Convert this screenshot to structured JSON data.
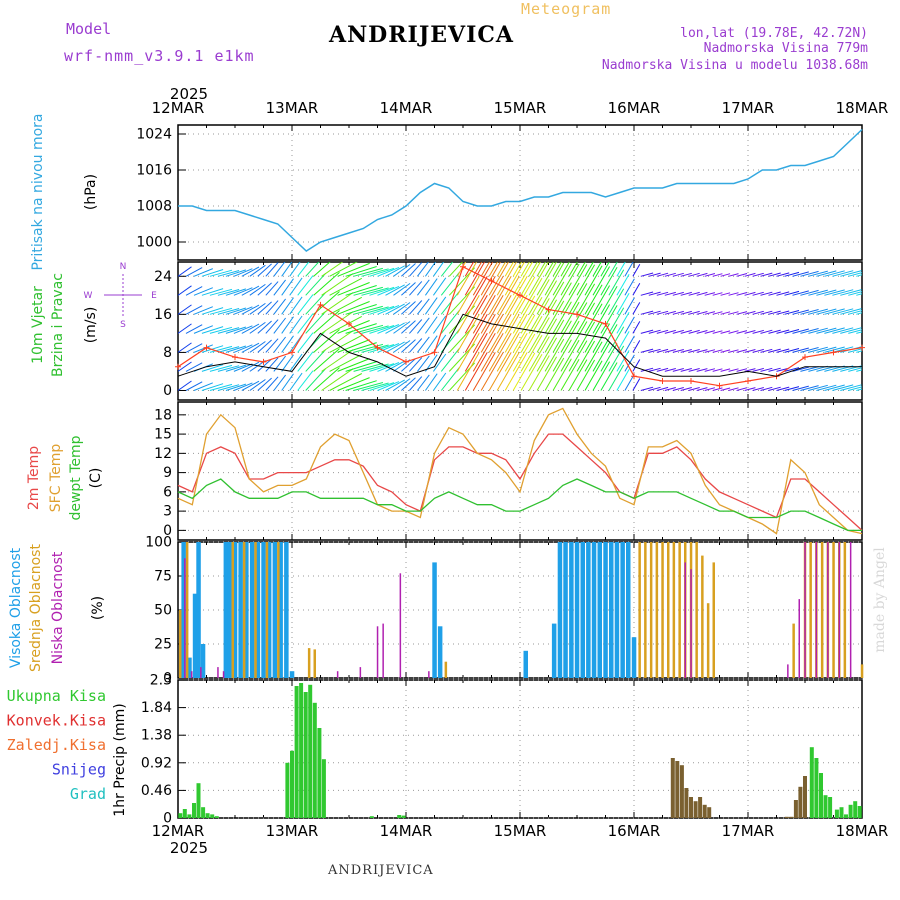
{
  "header": {
    "model_label": "Model",
    "model_name": "wrf-nmm_v3.9.1  e1km",
    "meteogram_label": "Meteogram",
    "station": "ANDRIJEVICA",
    "lonlat": "lon,lat (19.78E, 42.72N)",
    "elevation": "Nadmorska Visina 779m",
    "elevation_model": "Nadmorska Visina u modelu 1038.68m"
  },
  "footer": {
    "station": "ANDRIJEVICA",
    "watermark": "made by Angel"
  },
  "time_axis": {
    "year": "2025",
    "labels": [
      "12MAR",
      "13MAR",
      "14MAR",
      "15MAR",
      "16MAR",
      "17MAR",
      "18MAR"
    ]
  },
  "colors": {
    "pressure": "#33a8e0",
    "temp2m": "#e84848",
    "sfc_temp": "#e0a030",
    "dewpt": "#30c030",
    "high_cloud": "#1fa0e8",
    "mid_cloud": "#d8a020",
    "low_cloud": "#b020b0",
    "total_precip": "#30c830",
    "conv_precip": "#e03030",
    "frozen_precip": "#f07030",
    "snow": "#4040e0",
    "hail": "#20c0c0",
    "wind_speed": "#000000",
    "wind_gust": "#ff4020"
  },
  "chart_data": [
    {
      "type": "line",
      "title": "",
      "ylabel": [
        "Pritisak na nivou mora",
        "(hPa)"
      ],
      "ylim": [
        996,
        1026
      ],
      "yticks": [
        1000,
        1008,
        1016,
        1024
      ],
      "grid": true,
      "x": [
        0,
        0.125,
        0.25,
        0.375,
        0.5,
        0.625,
        0.75,
        0.875,
        1.0,
        1.125,
        1.25,
        1.375,
        1.5,
        1.625,
        1.75,
        1.875,
        2.0,
        2.125,
        2.25,
        2.375,
        2.5,
        2.625,
        2.75,
        2.875,
        3.0,
        3.125,
        3.25,
        3.375,
        3.5,
        3.625,
        3.75,
        3.875,
        4.0,
        4.125,
        4.25,
        4.375,
        4.5,
        4.625,
        4.75,
        4.875,
        5.0,
        5.125,
        5.25,
        5.375,
        5.5,
        5.625,
        5.75,
        5.875,
        6.0
      ],
      "series": [
        {
          "name": "Pritisak na nivou mora",
          "values": [
            1008,
            1008,
            1007,
            1007,
            1007,
            1006,
            1005,
            1004,
            1001,
            998,
            1000,
            1001,
            1002,
            1003,
            1005,
            1006,
            1008,
            1011,
            1013,
            1012,
            1009,
            1008,
            1008,
            1009,
            1009,
            1010,
            1010,
            1011,
            1011,
            1011,
            1010,
            1011,
            1012,
            1012,
            1012,
            1013,
            1013,
            1013,
            1013,
            1013,
            1014,
            1016,
            1016,
            1017,
            1017,
            1018,
            1019,
            1022,
            1025
          ]
        }
      ]
    },
    {
      "type": "line",
      "ylabel": [
        "10m Vjetar",
        "Brzina i Pravac",
        "(m/s)"
      ],
      "ylim": [
        -2,
        27
      ],
      "yticks": [
        0,
        8,
        16,
        24
      ],
      "grid": true,
      "compass": [
        "N",
        "W",
        "E",
        "S"
      ],
      "x": [
        0,
        0.25,
        0.5,
        0.75,
        1.0,
        1.25,
        1.5,
        1.75,
        2.0,
        2.25,
        2.5,
        2.75,
        3.0,
        3.25,
        3.5,
        3.75,
        4.0,
        4.25,
        4.5,
        4.75,
        5.0,
        5.25,
        5.5,
        5.75,
        6.0
      ],
      "series": [
        {
          "name": "wind speed",
          "values": [
            3,
            5,
            6,
            5,
            4,
            12,
            8,
            6,
            3,
            5,
            16,
            14,
            13,
            12,
            12,
            11,
            5,
            3,
            3,
            3,
            4,
            3,
            5,
            5,
            5
          ]
        },
        {
          "name": "wind gust",
          "values": [
            5,
            9,
            7,
            6,
            8,
            18,
            14,
            9,
            6,
            8,
            26,
            23,
            20,
            17,
            16,
            14,
            3,
            2,
            2,
            1,
            2,
            3,
            7,
            8,
            9
          ]
        }
      ]
    },
    {
      "type": "line",
      "ylabel": [
        "2m Temp",
        "SFC Temp",
        "dewpt Temp",
        "(C)"
      ],
      "ylim": [
        -1.5,
        20
      ],
      "yticks": [
        0,
        3,
        6,
        9,
        12,
        15,
        18
      ],
      "grid": true,
      "x": [
        0,
        0.125,
        0.25,
        0.375,
        0.5,
        0.625,
        0.75,
        0.875,
        1.0,
        1.125,
        1.25,
        1.375,
        1.5,
        1.625,
        1.75,
        1.875,
        2.0,
        2.125,
        2.25,
        2.375,
        2.5,
        2.625,
        2.75,
        2.875,
        3.0,
        3.125,
        3.25,
        3.375,
        3.5,
        3.625,
        3.75,
        3.875,
        4.0,
        4.125,
        4.25,
        4.375,
        4.5,
        4.625,
        4.75,
        4.875,
        5.0,
        5.125,
        5.25,
        5.375,
        5.5,
        5.625,
        5.75,
        5.875,
        6.0
      ],
      "series": [
        {
          "name": "2m Temp",
          "values": [
            7,
            6,
            12,
            13,
            12,
            8,
            8,
            9,
            9,
            9,
            10,
            11,
            11,
            10,
            7,
            6,
            4,
            3,
            11,
            13,
            13,
            12,
            12,
            11,
            8,
            12,
            15,
            15,
            13,
            11,
            9,
            6,
            5,
            12,
            12,
            13,
            11,
            8,
            6,
            5,
            4,
            3,
            2,
            8,
            8,
            6,
            4,
            2,
            0
          ]
        },
        {
          "name": "SFC Temp",
          "values": [
            5,
            4,
            15,
            18,
            16,
            8,
            6,
            7,
            7,
            8,
            13,
            15,
            14,
            9,
            4,
            3,
            3,
            2,
            12,
            16,
            15,
            12,
            11,
            9,
            6,
            14,
            18,
            19,
            15,
            12,
            10,
            5,
            4,
            13,
            13,
            14,
            12,
            7,
            4,
            3,
            2,
            1,
            -0.5,
            11,
            9,
            4,
            2,
            0,
            -0.5
          ]
        },
        {
          "name": "dewpt Temp",
          "values": [
            6,
            5,
            7,
            8,
            6,
            5,
            5,
            5,
            6,
            6,
            5,
            5,
            5,
            5,
            4,
            4,
            3,
            3,
            5,
            6,
            5,
            4,
            4,
            3,
            3,
            4,
            5,
            7,
            8,
            7,
            6,
            6,
            5,
            6,
            6,
            6,
            5,
            4,
            3,
            3,
            2,
            2,
            2,
            3,
            3,
            2,
            1,
            0,
            0
          ]
        }
      ]
    },
    {
      "type": "bar",
      "ylabel": [
        "Visoka Oblacnost",
        "Srednja Oblacnost",
        "Niska Oblacnost",
        "(%)"
      ],
      "ylim": [
        0,
        100
      ],
      "yticks": [
        0,
        25,
        50,
        75,
        100
      ],
      "grid": true,
      "series": [
        {
          "name": "Visoka Oblacnost",
          "points": [
            [
              0.05,
              100
            ],
            [
              0.1,
              15
            ],
            [
              0.15,
              62
            ],
            [
              0.18,
              100
            ],
            [
              0.22,
              25
            ],
            [
              0.42,
              100
            ],
            [
              0.45,
              100
            ],
            [
              0.5,
              100
            ],
            [
              0.55,
              100
            ],
            [
              0.6,
              100
            ],
            [
              0.65,
              100
            ],
            [
              0.7,
              100
            ],
            [
              0.75,
              100
            ],
            [
              0.8,
              100
            ],
            [
              0.85,
              100
            ],
            [
              0.9,
              100
            ],
            [
              0.95,
              100
            ],
            [
              1.0,
              5
            ],
            [
              2.25,
              85
            ],
            [
              2.3,
              38
            ],
            [
              3.05,
              20
            ],
            [
              3.3,
              40
            ],
            [
              3.35,
              100
            ],
            [
              3.4,
              100
            ],
            [
              3.45,
              100
            ],
            [
              3.5,
              100
            ],
            [
              3.55,
              100
            ],
            [
              3.6,
              100
            ],
            [
              3.65,
              100
            ],
            [
              3.7,
              100
            ],
            [
              3.75,
              100
            ],
            [
              3.8,
              100
            ],
            [
              3.85,
              100
            ],
            [
              3.9,
              100
            ],
            [
              3.95,
              100
            ],
            [
              4.0,
              30
            ]
          ]
        },
        {
          "name": "Srednja Oblacnost",
          "points": [
            [
              0.02,
              50
            ],
            [
              0.08,
              100
            ],
            [
              0.48,
              100
            ],
            [
              0.58,
              100
            ],
            [
              0.68,
              100
            ],
            [
              0.78,
              100
            ],
            [
              0.88,
              100
            ],
            [
              1.15,
              22
            ],
            [
              1.2,
              21
            ],
            [
              2.35,
              12
            ],
            [
              4.05,
              100
            ],
            [
              4.1,
              100
            ],
            [
              4.15,
              100
            ],
            [
              4.2,
              100
            ],
            [
              4.25,
              100
            ],
            [
              4.3,
              100
            ],
            [
              4.35,
              100
            ],
            [
              4.4,
              100
            ],
            [
              4.45,
              100
            ],
            [
              4.5,
              100
            ],
            [
              4.55,
              100
            ],
            [
              4.6,
              90
            ],
            [
              4.65,
              55
            ],
            [
              4.7,
              85
            ],
            [
              5.4,
              40
            ],
            [
              5.5,
              100
            ],
            [
              5.55,
              100
            ],
            [
              5.6,
              100
            ],
            [
              5.65,
              100
            ],
            [
              5.7,
              100
            ],
            [
              5.75,
              100
            ],
            [
              5.8,
              100
            ],
            [
              5.85,
              100
            ],
            [
              6.0,
              10
            ]
          ]
        },
        {
          "name": "Niska Oblacnost",
          "points": [
            [
              0.06,
              88
            ],
            [
              0.12,
              5
            ],
            [
              0.2,
              8
            ],
            [
              0.35,
              8
            ],
            [
              0.4,
              5
            ],
            [
              1.4,
              5
            ],
            [
              1.6,
              8
            ],
            [
              1.75,
              38
            ],
            [
              1.8,
              40
            ],
            [
              1.95,
              77
            ],
            [
              2.2,
              5
            ],
            [
              4.45,
              85
            ],
            [
              4.5,
              80
            ],
            [
              5.35,
              10
            ],
            [
              5.45,
              58
            ],
            [
              5.5,
              100
            ],
            [
              5.6,
              100
            ],
            [
              5.7,
              100
            ],
            [
              5.8,
              100
            ],
            [
              5.9,
              100
            ]
          ]
        }
      ]
    },
    {
      "type": "bar",
      "ylabel": [
        "1hr Precip (mm)"
      ],
      "legend": [
        "Ukupna Kisa",
        "Konvek.Kisa",
        "Zaledj.Kisa",
        "Snijeg",
        "Grad"
      ],
      "ylim": [
        0,
        2.3
      ],
      "yticks": [
        0,
        0.46,
        0.92,
        1.38,
        1.84,
        2.3
      ],
      "grid": true,
      "series": [
        {
          "name": "Ukupna Kisa",
          "points": [
            [
              0.02,
              0.08
            ],
            [
              0.06,
              0.15
            ],
            [
              0.1,
              0.06
            ],
            [
              0.14,
              0.25
            ],
            [
              0.18,
              0.58
            ],
            [
              0.22,
              0.18
            ],
            [
              0.26,
              0.08
            ],
            [
              0.3,
              0.06
            ],
            [
              0.34,
              0.03
            ],
            [
              0.96,
              0.92
            ],
            [
              1.0,
              1.12
            ],
            [
              1.04,
              2.2
            ],
            [
              1.08,
              2.25
            ],
            [
              1.12,
              2.1
            ],
            [
              1.16,
              2.22
            ],
            [
              1.2,
              1.92
            ],
            [
              1.24,
              1.5
            ],
            [
              1.28,
              0.98
            ],
            [
              1.7,
              0.03
            ],
            [
              1.94,
              0.05
            ],
            [
              1.98,
              0.04
            ],
            [
              5.56,
              1.18
            ],
            [
              5.6,
              1.0
            ],
            [
              5.64,
              0.75
            ],
            [
              5.68,
              0.38
            ],
            [
              5.72,
              0.35
            ],
            [
              5.78,
              0.14
            ],
            [
              5.82,
              0.18
            ],
            [
              5.86,
              0.06
            ],
            [
              5.9,
              0.22
            ],
            [
              5.94,
              0.28
            ],
            [
              5.98,
              0.2
            ]
          ]
        },
        {
          "name": "Konvek.Kisa",
          "points": [
            [
              4.34,
              1.0
            ],
            [
              4.38,
              0.95
            ],
            [
              4.42,
              0.88
            ],
            [
              4.46,
              0.5
            ],
            [
              4.5,
              0.35
            ],
            [
              4.54,
              0.28
            ],
            [
              4.58,
              0.35
            ],
            [
              4.62,
              0.22
            ],
            [
              4.66,
              0.18
            ],
            [
              5.34,
              0.02
            ],
            [
              5.38,
              0.02
            ],
            [
              5.42,
              0.3
            ],
            [
              5.46,
              0.52
            ],
            [
              5.5,
              0.7
            ]
          ]
        }
      ]
    }
  ]
}
